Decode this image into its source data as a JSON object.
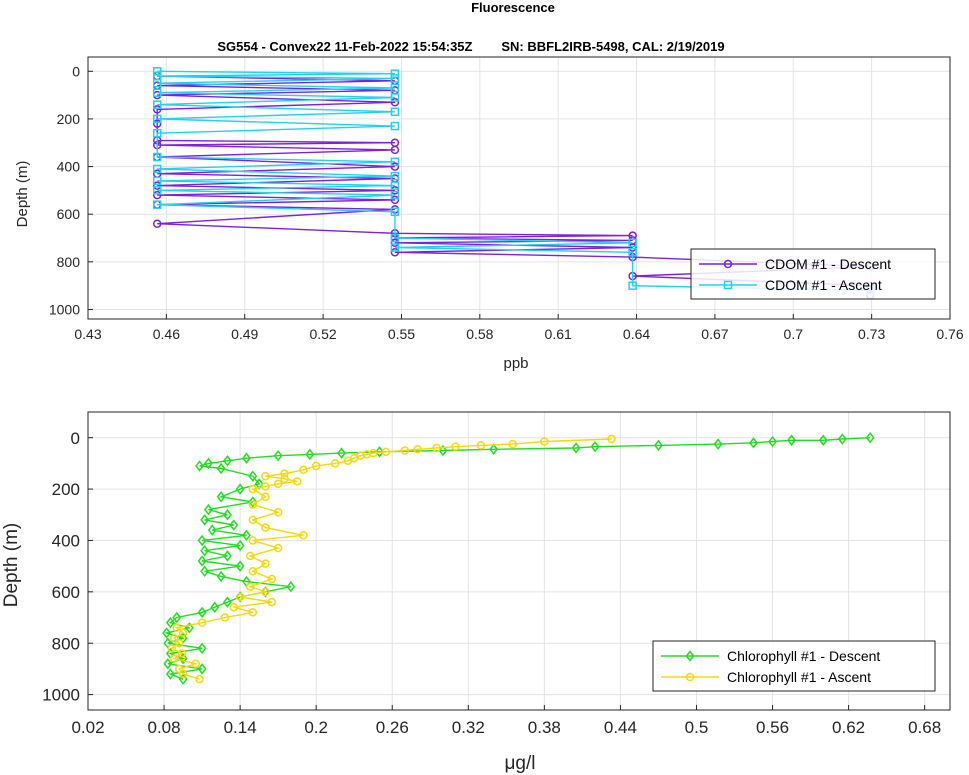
{
  "figure_title": "Fluorescence",
  "chart_data": [
    {
      "type": "line",
      "title": "SG554 - Convex22 11-Feb-2022 15:54:35Z        SN: BBFL2IRB-5498, CAL: 2/19/2019",
      "xlabel": "ppb",
      "ylabel": "Depth (m)",
      "xlim": [
        0.43,
        0.76
      ],
      "ylim": [
        1040,
        -60
      ],
      "y_reversed": true,
      "grid": true,
      "legend_position": "bottom-right",
      "xticks": [
        "0.43",
        "0.46",
        "0.49",
        "0.52",
        "0.55",
        "0.58",
        "0.61",
        "0.64",
        "0.67",
        "0.7",
        "0.73",
        "0.76"
      ],
      "yticks": [
        "0",
        "200",
        "400",
        "600",
        "800",
        "1000"
      ],
      "series": [
        {
          "name": "CDOM #1 - Descent",
          "color": "#7f1fe0",
          "marker": "circle",
          "depth": [
            20,
            40,
            60,
            80,
            100,
            130,
            160,
            220,
            290,
            300,
            310,
            330,
            360,
            400,
            430,
            450,
            480,
            500,
            520,
            540,
            560,
            580,
            640,
            680,
            690,
            700,
            710,
            720,
            740,
            760,
            780,
            820,
            860,
            900,
            940
          ],
          "value": [
            0.4565,
            0.5475,
            0.4565,
            0.5475,
            0.4565,
            0.5475,
            0.4565,
            0.4565,
            0.4565,
            0.5475,
            0.4565,
            0.5475,
            0.4565,
            0.5475,
            0.4565,
            0.5475,
            0.4565,
            0.5475,
            0.4565,
            0.5475,
            0.4565,
            0.5475,
            0.4565,
            0.5475,
            0.6385,
            0.5475,
            0.6385,
            0.5475,
            0.6385,
            0.5475,
            0.6385,
            0.7295,
            0.6385,
            0.7295,
            0.7295
          ]
        },
        {
          "name": "CDOM #1 - Ascent",
          "color": "#1fd3f0",
          "marker": "square",
          "depth": [
            0,
            10,
            20,
            30,
            50,
            70,
            90,
            110,
            140,
            170,
            200,
            230,
            260,
            360,
            380,
            410,
            440,
            460,
            480,
            500,
            520,
            560,
            590,
            700,
            720,
            740,
            760,
            900,
            920
          ],
          "value": [
            0.4565,
            0.5475,
            0.4565,
            0.5475,
            0.4565,
            0.5475,
            0.4565,
            0.5475,
            0.4565,
            0.5475,
            0.4565,
            0.5475,
            0.4565,
            0.4565,
            0.5475,
            0.4565,
            0.5475,
            0.4565,
            0.5475,
            0.4565,
            0.5475,
            0.4565,
            0.5475,
            0.5475,
            0.6385,
            0.5475,
            0.6385,
            0.6385,
            0.7295
          ]
        }
      ]
    },
    {
      "type": "line",
      "title": "",
      "xlabel": "μg/l",
      "ylabel": "Depth (m)",
      "xlim": [
        0.02,
        0.7
      ],
      "ylim": [
        1060,
        -100
      ],
      "y_reversed": true,
      "grid": true,
      "legend_position": "bottom-right",
      "xticks": [
        "0.02",
        "0.08",
        "0.14",
        "0.2",
        "0.26",
        "0.32",
        "0.38",
        "0.44",
        "0.5",
        "0.56",
        "0.62",
        "0.68"
      ],
      "yticks": [
        "0",
        "200",
        "400",
        "600",
        "800",
        "1000"
      ],
      "series": [
        {
          "name": "Chlorophyll #1 - Descent",
          "color": "#1fe01f",
          "marker": "diamond",
          "depth": [
            0,
            5,
            10,
            10,
            15,
            20,
            25,
            30,
            35,
            40,
            45,
            50,
            55,
            60,
            65,
            70,
            80,
            90,
            100,
            110,
            120,
            150,
            180,
            200,
            230,
            250,
            280,
            300,
            320,
            340,
            360,
            380,
            400,
            420,
            440,
            460,
            480,
            500,
            520,
            540,
            560,
            580,
            600,
            620,
            640,
            660,
            680,
            700,
            720,
            740,
            760,
            780,
            800,
            820,
            840,
            860,
            880,
            900,
            920,
            940
          ],
          "value": [
            0.637,
            0.615,
            0.6,
            0.575,
            0.56,
            0.545,
            0.517,
            0.47,
            0.42,
            0.405,
            0.34,
            0.3,
            0.25,
            0.22,
            0.195,
            0.17,
            0.145,
            0.13,
            0.115,
            0.108,
            0.125,
            0.15,
            0.155,
            0.14,
            0.125,
            0.15,
            0.115,
            0.13,
            0.112,
            0.135,
            0.118,
            0.145,
            0.11,
            0.14,
            0.112,
            0.13,
            0.11,
            0.14,
            0.112,
            0.125,
            0.145,
            0.18,
            0.16,
            0.14,
            0.13,
            0.12,
            0.11,
            0.09,
            0.085,
            0.1,
            0.082,
            0.095,
            0.083,
            0.11,
            0.085,
            0.095,
            0.083,
            0.11,
            0.085,
            0.095
          ]
        },
        {
          "name": "Chlorophyll #1 - Ascent",
          "color": "#f5d90a",
          "marker": "circle",
          "depth": [
            5,
            15,
            25,
            30,
            35,
            40,
            45,
            50,
            55,
            60,
            65,
            70,
            80,
            90,
            100,
            110,
            125,
            140,
            150,
            160,
            170,
            180,
            190,
            200,
            230,
            260,
            290,
            320,
            350,
            380,
            400,
            430,
            460,
            490,
            520,
            550,
            580,
            600,
            620,
            640,
            660,
            680,
            700,
            720,
            740,
            760,
            780,
            800,
            820,
            840,
            860,
            880,
            900,
            920,
            940
          ],
          "value": [
            0.433,
            0.38,
            0.355,
            0.33,
            0.31,
            0.295,
            0.28,
            0.27,
            0.255,
            0.245,
            0.24,
            0.235,
            0.23,
            0.225,
            0.215,
            0.2,
            0.19,
            0.175,
            0.16,
            0.175,
            0.185,
            0.17,
            0.16,
            0.15,
            0.16,
            0.15,
            0.17,
            0.15,
            0.16,
            0.19,
            0.15,
            0.17,
            0.148,
            0.16,
            0.15,
            0.165,
            0.148,
            0.16,
            0.14,
            0.165,
            0.135,
            0.15,
            0.128,
            0.11,
            0.09,
            0.095,
            0.088,
            0.092,
            0.086,
            0.094,
            0.088,
            0.105,
            0.092,
            0.095,
            0.108
          ]
        }
      ]
    }
  ]
}
